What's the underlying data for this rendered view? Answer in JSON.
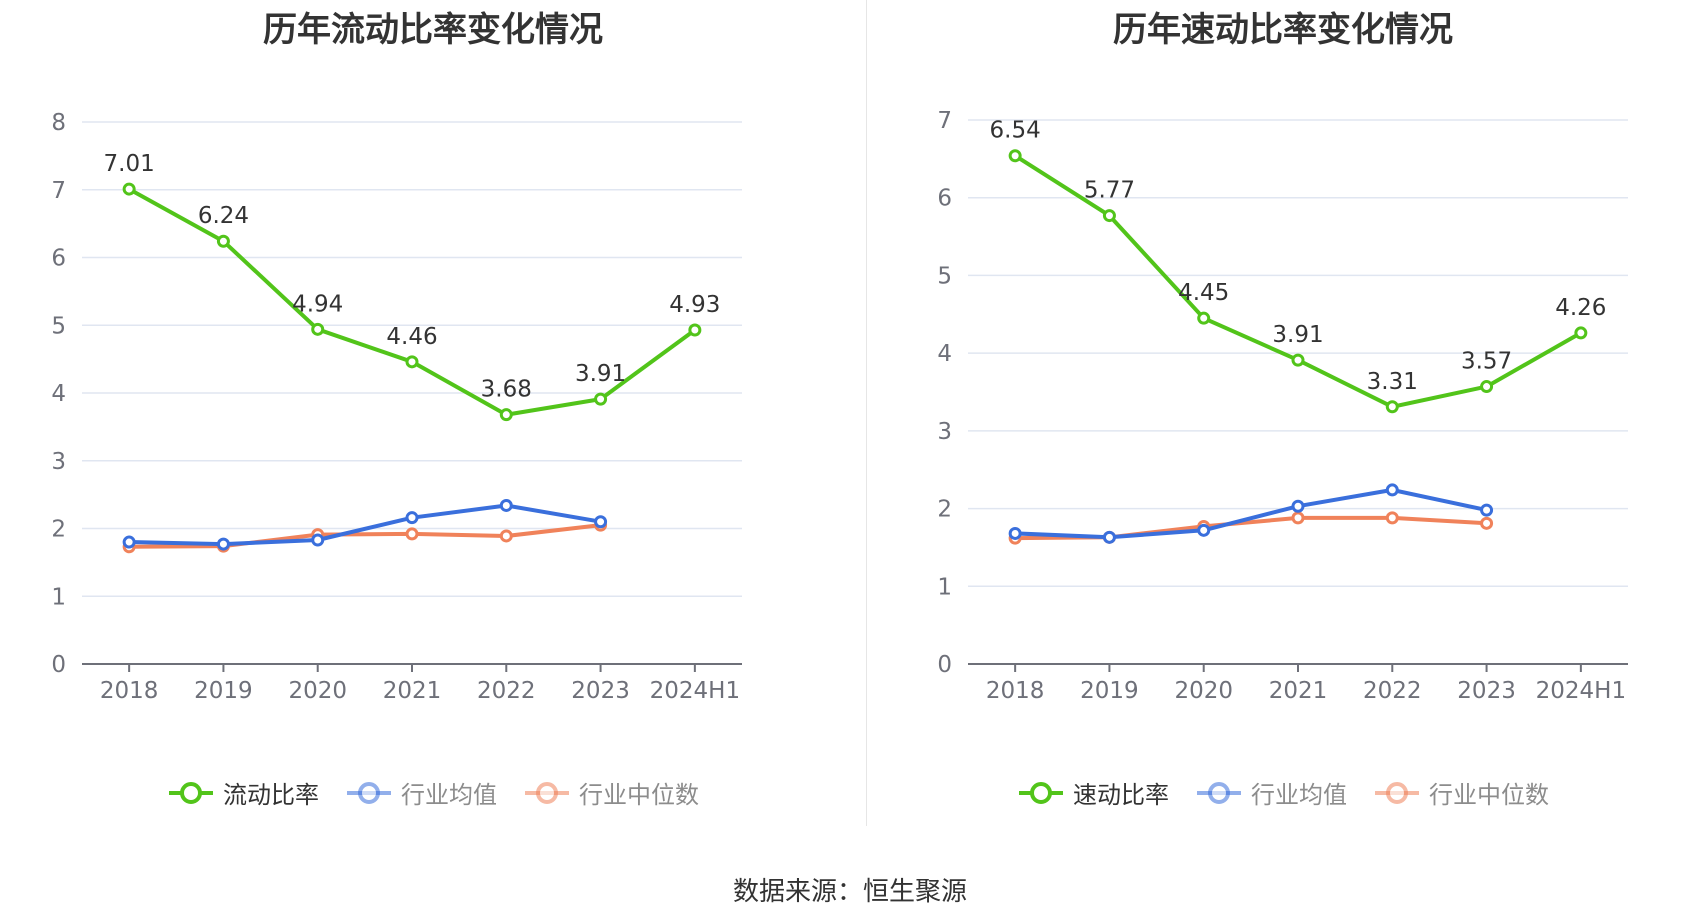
{
  "charts": [
    {
      "title": "历年流动比率变化情况",
      "legend": [
        {
          "label": "流动比率",
          "color": "#52c41a",
          "active": true
        },
        {
          "label": "行业均值",
          "color": "#3a6fdc",
          "active": false
        },
        {
          "label": "行业中位数",
          "color": "#f0825a",
          "active": false
        }
      ]
    },
    {
      "title": "历年速动比率变化情况",
      "legend": [
        {
          "label": "速动比率",
          "color": "#52c41a",
          "active": true
        },
        {
          "label": "行业均值",
          "color": "#3a6fdc",
          "active": false
        },
        {
          "label": "行业中位数",
          "color": "#f0825a",
          "active": false
        }
      ]
    }
  ],
  "source": "数据来源：恒生聚源",
  "chart_data": [
    {
      "type": "line",
      "title": "历年流动比率变化情况",
      "categories": [
        "2018",
        "2019",
        "2020",
        "2021",
        "2022",
        "2023",
        "2024H1"
      ],
      "ylim": [
        0,
        8
      ],
      "yticks": [
        0,
        1,
        2,
        3,
        4,
        5,
        6,
        7,
        8
      ],
      "grid": true,
      "legend_position": "bottom",
      "series": [
        {
          "name": "流动比率",
          "color": "#52c41a",
          "values": [
            7.01,
            6.24,
            4.94,
            4.46,
            3.68,
            3.91,
            4.93
          ],
          "labels": [
            "7.01",
            "6.24",
            "4.94",
            "4.46",
            "3.68",
            "3.91",
            "4.93"
          ]
        },
        {
          "name": "行业均值",
          "color": "#3a6fdc",
          "values": [
            1.8,
            1.77,
            1.83,
            2.16,
            2.34,
            2.1,
            null
          ]
        },
        {
          "name": "行业中位数",
          "color": "#f0825a",
          "values": [
            1.73,
            1.74,
            1.91,
            1.92,
            1.89,
            2.05,
            null
          ]
        }
      ]
    },
    {
      "type": "line",
      "title": "历年速动比率变化情况",
      "categories": [
        "2018",
        "2019",
        "2020",
        "2021",
        "2022",
        "2023",
        "2024H1"
      ],
      "ylim": [
        0,
        7
      ],
      "yticks": [
        0,
        1,
        2,
        3,
        4,
        5,
        6,
        7
      ],
      "grid": true,
      "legend_position": "bottom",
      "series": [
        {
          "name": "速动比率",
          "color": "#52c41a",
          "values": [
            6.54,
            5.77,
            4.45,
            3.91,
            3.31,
            3.57,
            4.26
          ],
          "labels": [
            "6.54",
            "5.77",
            "4.45",
            "3.91",
            "3.31",
            "3.57",
            "4.26"
          ]
        },
        {
          "name": "行业均值",
          "color": "#3a6fdc",
          "values": [
            1.68,
            1.63,
            1.72,
            2.03,
            2.24,
            1.98,
            null
          ]
        },
        {
          "name": "行业中位数",
          "color": "#f0825a",
          "values": [
            1.62,
            1.63,
            1.77,
            1.88,
            1.88,
            1.81,
            null
          ]
        }
      ]
    }
  ]
}
